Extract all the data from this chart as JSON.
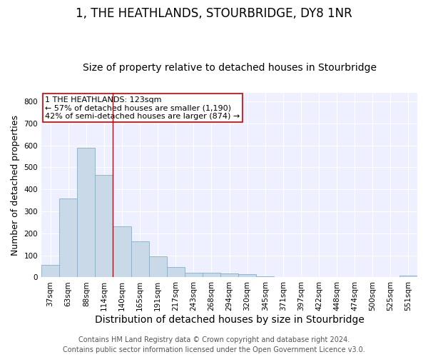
{
  "title": "1, THE HEATHLANDS, STOURBRIDGE, DY8 1NR",
  "subtitle": "Size of property relative to detached houses in Stourbridge",
  "xlabel": "Distribution of detached houses by size in Stourbridge",
  "ylabel": "Number of detached properties",
  "footer1": "Contains HM Land Registry data © Crown copyright and database right 2024.",
  "footer2": "Contains public sector information licensed under the Open Government Licence v3.0.",
  "categories": [
    "37sqm",
    "63sqm",
    "88sqm",
    "114sqm",
    "140sqm",
    "165sqm",
    "191sqm",
    "217sqm",
    "243sqm",
    "268sqm",
    "294sqm",
    "320sqm",
    "345sqm",
    "371sqm",
    "397sqm",
    "422sqm",
    "448sqm",
    "474sqm",
    "500sqm",
    "525sqm",
    "551sqm"
  ],
  "values": [
    58,
    357,
    590,
    465,
    233,
    163,
    96,
    48,
    22,
    20,
    18,
    13,
    5,
    3,
    2,
    2,
    1,
    1,
    1,
    1,
    7
  ],
  "bar_color": "#c9d9e8",
  "bar_edge_color": "#7ab4d4",
  "vline_x": 3.5,
  "vline_color": "#cc0000",
  "annotation_title": "1 THE HEATHLANDS: 123sqm",
  "annotation_line2": "← 57% of detached houses are smaller (1,190)",
  "annotation_line3": "42% of semi-detached houses are larger (874) →",
  "annotation_box_color": "white",
  "annotation_box_edge": "#cc0000",
  "ylim": [
    0,
    840
  ],
  "yticks": [
    0,
    100,
    200,
    300,
    400,
    500,
    600,
    700,
    800
  ],
  "title_fontsize": 12,
  "subtitle_fontsize": 10,
  "xlabel_fontsize": 10,
  "ylabel_fontsize": 9,
  "tick_fontsize": 7.5,
  "annotation_fontsize": 8,
  "footer_fontsize": 7,
  "background_color": "#eef0ff"
}
